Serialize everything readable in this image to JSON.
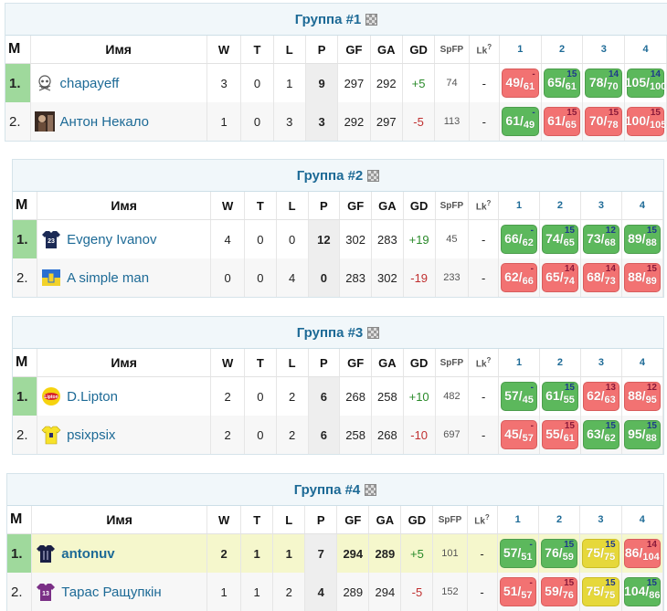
{
  "headers": {
    "m": "М",
    "name": "Имя",
    "w": "W",
    "t": "T",
    "l": "L",
    "p": "P",
    "gf": "GF",
    "ga": "GA",
    "gd": "GD",
    "spfp": "SpFP",
    "lk": "Lk",
    "lk_help": "?",
    "r1": "1",
    "r2": "2",
    "r3": "3",
    "r4": "4"
  },
  "groups": [
    {
      "title": "Группа #1",
      "rows": [
        {
          "pos": "1.",
          "name": "chapayeff",
          "icon": "skull-avatar-icon",
          "w": "3",
          "t": "0",
          "l": "1",
          "p": "9",
          "gf": "297",
          "ga": "292",
          "gd": "+5",
          "spfp": "74",
          "lk": "-",
          "results": [
            {
              "a": "49",
              "b": "61",
              "s": "l",
              "n": "-"
            },
            {
              "a": "65",
              "b": "61",
              "s": "w",
              "n": "15"
            },
            {
              "a": "78",
              "b": "70",
              "s": "w",
              "n": "14"
            },
            {
              "a": "105",
              "b": "100",
              "s": "w",
              "n": "14"
            }
          ]
        },
        {
          "pos": "2.",
          "name": "Антон Некало",
          "icon": "photo-avatar-icon",
          "w": "1",
          "t": "0",
          "l": "3",
          "p": "3",
          "gf": "292",
          "ga": "297",
          "gd": "-5",
          "spfp": "113",
          "lk": "-",
          "results": [
            {
              "a": "61",
              "b": "49",
              "s": "w",
              "n": "-"
            },
            {
              "a": "61",
              "b": "65",
              "s": "l",
              "n": "15"
            },
            {
              "a": "70",
              "b": "78",
              "s": "l",
              "n": "15"
            },
            {
              "a": "100",
              "b": "105",
              "s": "l",
              "n": "15"
            }
          ]
        }
      ]
    },
    {
      "title": "Группа #2",
      "rows": [
        {
          "pos": "1.",
          "name": "Evgeny Ivanov",
          "icon": "jersey-23-icon",
          "w": "4",
          "t": "0",
          "l": "0",
          "p": "12",
          "gf": "302",
          "ga": "283",
          "gd": "+19",
          "spfp": "45",
          "lk": "-",
          "results": [
            {
              "a": "66",
              "b": "62",
              "s": "w",
              "n": "-"
            },
            {
              "a": "74",
              "b": "65",
              "s": "w",
              "n": "15"
            },
            {
              "a": "73",
              "b": "68",
              "s": "w",
              "n": "12"
            },
            {
              "a": "89",
              "b": "88",
              "s": "w",
              "n": "15"
            }
          ]
        },
        {
          "pos": "2.",
          "name": "A simple man",
          "icon": "ukraine-flag-icon",
          "w": "0",
          "t": "0",
          "l": "4",
          "p": "0",
          "gf": "283",
          "ga": "302",
          "gd": "-19",
          "spfp": "233",
          "lk": "-",
          "results": [
            {
              "a": "62",
              "b": "66",
              "s": "l",
              "n": "-"
            },
            {
              "a": "65",
              "b": "74",
              "s": "l",
              "n": "14"
            },
            {
              "a": "68",
              "b": "73",
              "s": "l",
              "n": "14"
            },
            {
              "a": "88",
              "b": "89",
              "s": "l",
              "n": "15"
            }
          ]
        }
      ]
    },
    {
      "title": "Группа #3",
      "rows": [
        {
          "pos": "1.",
          "name": "D.Lipton",
          "icon": "lipton-logo-icon",
          "w": "2",
          "t": "0",
          "l": "2",
          "p": "6",
          "gf": "268",
          "ga": "258",
          "gd": "+10",
          "spfp": "482",
          "lk": "-",
          "results": [
            {
              "a": "57",
              "b": "45",
              "s": "w",
              "n": "-"
            },
            {
              "a": "61",
              "b": "55",
              "s": "w",
              "n": "15"
            },
            {
              "a": "62",
              "b": "63",
              "s": "l",
              "n": "13"
            },
            {
              "a": "88",
              "b": "95",
              "s": "l",
              "n": "12"
            }
          ]
        },
        {
          "pos": "2.",
          "name": "psixpsix",
          "icon": "yellow-jersey-icon",
          "w": "2",
          "t": "0",
          "l": "2",
          "p": "6",
          "gf": "258",
          "ga": "268",
          "gd": "-10",
          "spfp": "697",
          "lk": "-",
          "results": [
            {
              "a": "45",
              "b": "57",
              "s": "l",
              "n": "-"
            },
            {
              "a": "55",
              "b": "61",
              "s": "l",
              "n": "15"
            },
            {
              "a": "63",
              "b": "62",
              "s": "w",
              "n": "15"
            },
            {
              "a": "95",
              "b": "88",
              "s": "w",
              "n": "15"
            }
          ]
        }
      ]
    },
    {
      "title": "Группа #4",
      "rows": [
        {
          "pos": "1.",
          "name": "antonuv",
          "icon": "navy-jersey-icon",
          "w": "2",
          "t": "1",
          "l": "1",
          "p": "7",
          "gf": "294",
          "ga": "289",
          "gd": "+5",
          "spfp": "101",
          "lk": "-",
          "highlight": true,
          "results": [
            {
              "a": "57",
              "b": "51",
              "s": "w",
              "n": "-"
            },
            {
              "a": "76",
              "b": "59",
              "s": "w",
              "n": "15"
            },
            {
              "a": "75",
              "b": "75",
              "s": "d",
              "n": "15"
            },
            {
              "a": "86",
              "b": "104",
              "s": "l",
              "n": "14"
            }
          ]
        },
        {
          "pos": "2.",
          "name": "Тарас Ращупкін",
          "icon": "jersey-13-icon",
          "w": "1",
          "t": "1",
          "l": "2",
          "p": "4",
          "gf": "289",
          "ga": "294",
          "gd": "-5",
          "spfp": "152",
          "lk": "-",
          "results": [
            {
              "a": "51",
              "b": "57",
              "s": "l",
              "n": "-"
            },
            {
              "a": "59",
              "b": "76",
              "s": "l",
              "n": "15"
            },
            {
              "a": "75",
              "b": "75",
              "s": "d",
              "n": "15"
            },
            {
              "a": "104",
              "b": "86",
              "s": "w",
              "n": "15"
            }
          ]
        }
      ]
    }
  ]
}
